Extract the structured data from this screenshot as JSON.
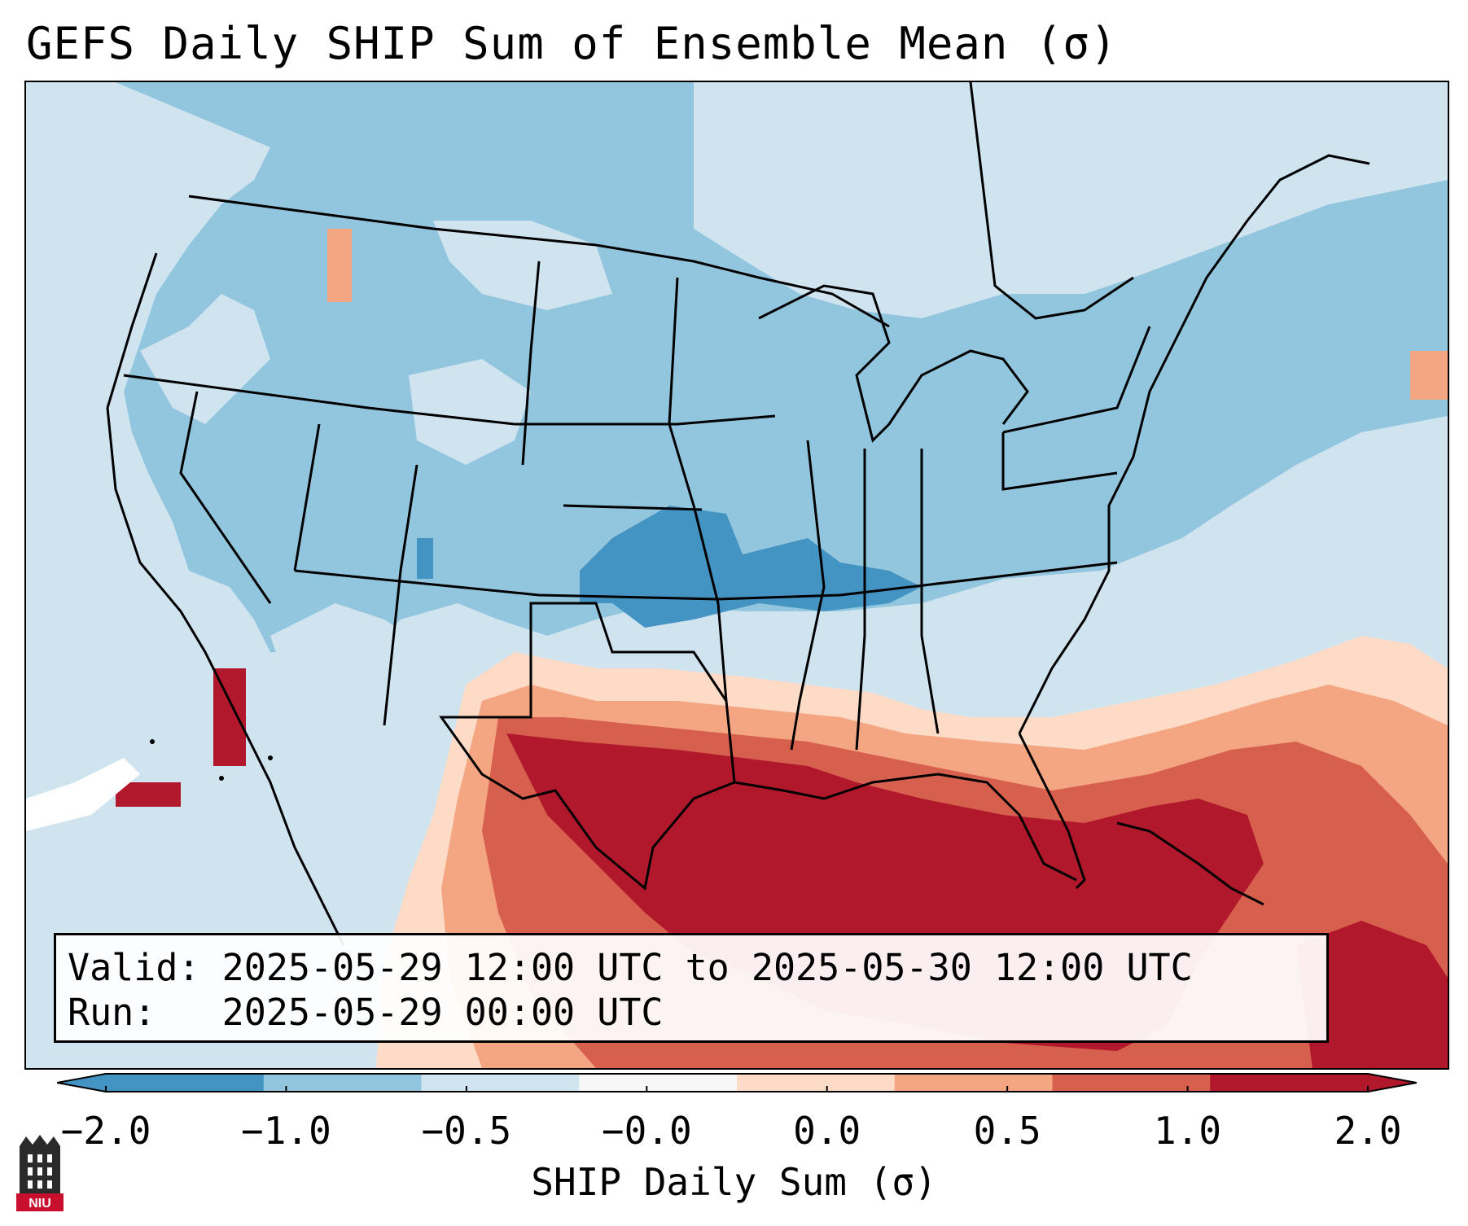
{
  "title": "GEFS Daily SHIP Sum of Ensemble Mean (σ)",
  "info": {
    "valid_label": "Valid:",
    "valid_value": "2025-05-29 12:00 UTC to 2025-05-30 12:00 UTC",
    "run_label": "Run:",
    "run_value": "2025-05-29 00:00 UTC"
  },
  "colorbar": {
    "label": "SHIP Daily Sum (σ)",
    "ticks": [
      "−2.0",
      "−1.0",
      "−0.5",
      "−0.0",
      "0.0",
      "0.5",
      "1.0",
      "2.0"
    ],
    "colors": [
      "#4393c3",
      "#92c5de",
      "#d1e5f0",
      "#f7f7f7",
      "#fddbc7",
      "#f4a582",
      "#d6604d",
      "#b2182b"
    ],
    "extend": "both"
  },
  "legend_colors": {
    "strong_negative": "#4393c3",
    "negative": "#92c5de",
    "weak_negative": "#d1e5f0",
    "near_zero": "#f7f7f7",
    "weak_positive": "#fddbc7",
    "positive": "#f4a582",
    "strong_positive": "#d6604d",
    "very_strong_positive": "#b2182b"
  },
  "logo": {
    "text": "NIU"
  }
}
